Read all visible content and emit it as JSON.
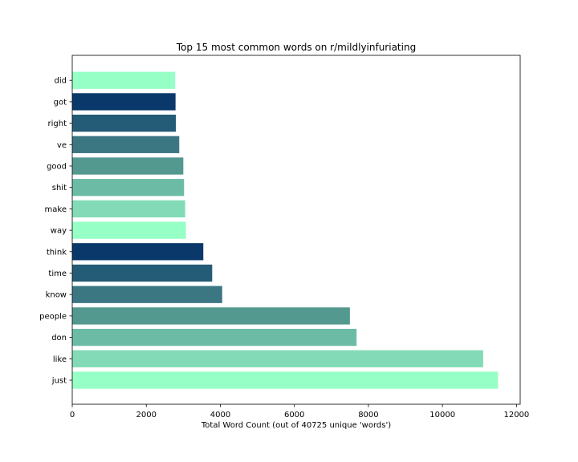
{
  "chart_data": {
    "type": "bar",
    "orientation": "horizontal",
    "title": "Top 15 most common words on r/mildlyinfuriating",
    "xlabel": "Total Word Count (out of 40725 unique 'words')",
    "ylabel": "",
    "xlim": [
      0,
      12100
    ],
    "xticks": [
      0,
      2000,
      4000,
      6000,
      8000,
      10000,
      12000
    ],
    "grid": false,
    "categories": [
      "just",
      "like",
      "don",
      "people",
      "know",
      "time",
      "think",
      "way",
      "make",
      "shit",
      "good",
      "ve",
      "right",
      "got",
      "did"
    ],
    "values": [
      11500,
      11100,
      7680,
      7500,
      4050,
      3780,
      3540,
      3070,
      3050,
      3020,
      3000,
      2890,
      2800,
      2790,
      2780
    ],
    "colors": [
      "#96ffc6",
      "#82dbb6",
      "#6cbba5",
      "#53998f",
      "#3b7783",
      "#245b76",
      "#0b386b",
      "#96ffc6",
      "#82dbb6",
      "#6cbba5",
      "#53998f",
      "#3b7783",
      "#245b76",
      "#0b386b",
      "#96ffc6"
    ]
  }
}
